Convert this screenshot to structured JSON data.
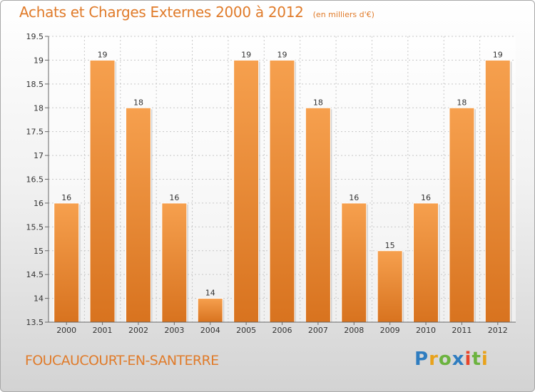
{
  "title": "Achats et Charges Externes 2000 à 2012",
  "unit_note": "(en milliers d'€)",
  "commune": "FOUCAUCOURT-EN-SANTERRE",
  "logo": {
    "letters": [
      "P",
      "r",
      "o",
      "x",
      "i",
      "t",
      "i"
    ]
  },
  "colors": {
    "bar": "#f0913a",
    "accent": "#e07b2a",
    "grid": "#c8c8c8"
  },
  "chart_data": {
    "type": "bar",
    "categories": [
      "2000",
      "2001",
      "2002",
      "2003",
      "2004",
      "2005",
      "2006",
      "2007",
      "2008",
      "2009",
      "2010",
      "2011",
      "2012"
    ],
    "values": [
      16,
      19,
      18,
      16,
      14,
      19,
      19,
      18,
      16,
      15,
      16,
      18,
      19
    ],
    "value_labels": [
      "16",
      "19",
      "18",
      "16",
      "14",
      "19",
      "19",
      "18",
      "16",
      "15",
      "16",
      "18",
      "19"
    ],
    "yticks": [
      "13.5",
      "14",
      "14.5",
      "15",
      "15.5",
      "16",
      "16.5",
      "17",
      "17.5",
      "18",
      "18.5",
      "19",
      "19.5"
    ],
    "ylim": [
      13.5,
      19.5
    ],
    "grid": true
  }
}
